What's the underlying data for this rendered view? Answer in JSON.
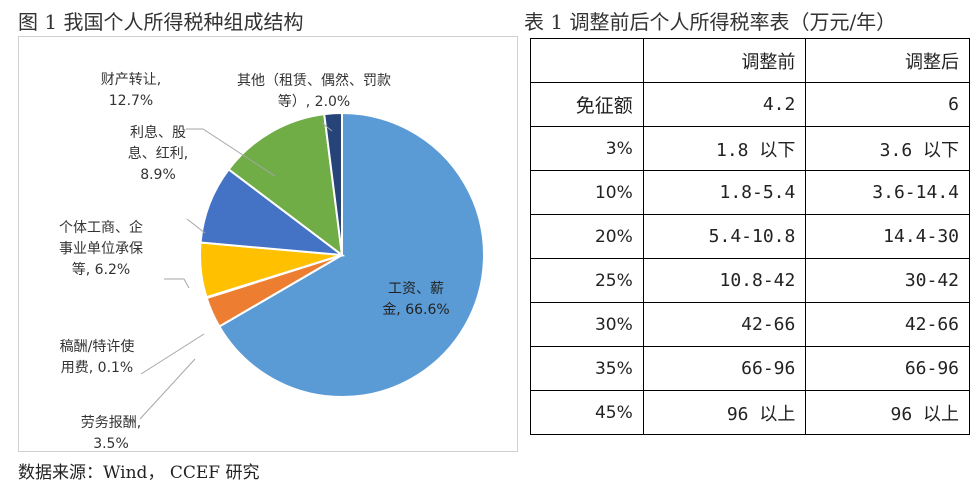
{
  "pie_title": "图 1 我国个人所得税种组成结构",
  "table_title": "表 1 调整前后个人所得税率表（万元/年）",
  "source": "数据来源：Wind， CCEF 研究",
  "chart_data": {
    "type": "pie",
    "unit": "%",
    "slices": [
      {
        "name": "工资、薪金",
        "value": 66.6,
        "label_lines": [
          "工资、薪",
          "金, 66.6%"
        ],
        "color": "#5b9bd5"
      },
      {
        "name": "劳务报酬",
        "value": 3.5,
        "label_lines": [
          "劳务报酬,",
          "3.5%"
        ],
        "color": "#ed7d31"
      },
      {
        "name": "稿酬/特许使用费",
        "value": 0.1,
        "label_lines": [
          "稿酬/特许使",
          "用费, 0.1%"
        ],
        "color": "#a5a5a5"
      },
      {
        "name": "个体工商、企事业单位承保等",
        "value": 6.2,
        "label_lines": [
          "个体工商、企",
          "事业单位承保",
          "等, 6.2%"
        ],
        "color": "#ffc000"
      },
      {
        "name": "利息、股息、红利",
        "value": 8.9,
        "label_lines": [
          "利息、股",
          "息、红利,",
          "8.9%"
        ],
        "color": "#4472c4"
      },
      {
        "name": "财产转让",
        "value": 12.7,
        "label_lines": [
          "财产转让,",
          "12.7%"
        ],
        "color": "#70ad47"
      },
      {
        "name": "其他（租赁、偶然、罚款等）",
        "value": 2.0,
        "label_lines": [
          "其他（租赁、偶然、罚款",
          "等）, 2.0%"
        ],
        "color": "#264478"
      }
    ]
  },
  "rate_table": {
    "headers": [
      "",
      "调整前",
      "调整后"
    ],
    "rows": [
      {
        "rate": "免征额",
        "before": "4.2",
        "after": "6"
      },
      {
        "rate": "3%",
        "before": "1.8 以下",
        "after": "3.6 以下"
      },
      {
        "rate": "10%",
        "before": "1.8-5.4",
        "after": "3.6-14.4"
      },
      {
        "rate": "20%",
        "before": "5.4-10.8",
        "after": "14.4-30"
      },
      {
        "rate": "25%",
        "before": "10.8-42",
        "after": "30-42"
      },
      {
        "rate": "30%",
        "before": "42-66",
        "after": "42-66"
      },
      {
        "rate": "35%",
        "before": "66-96",
        "after": "66-96"
      },
      {
        "rate": "45%",
        "before": "96 以上",
        "after": "96 以上"
      }
    ]
  }
}
